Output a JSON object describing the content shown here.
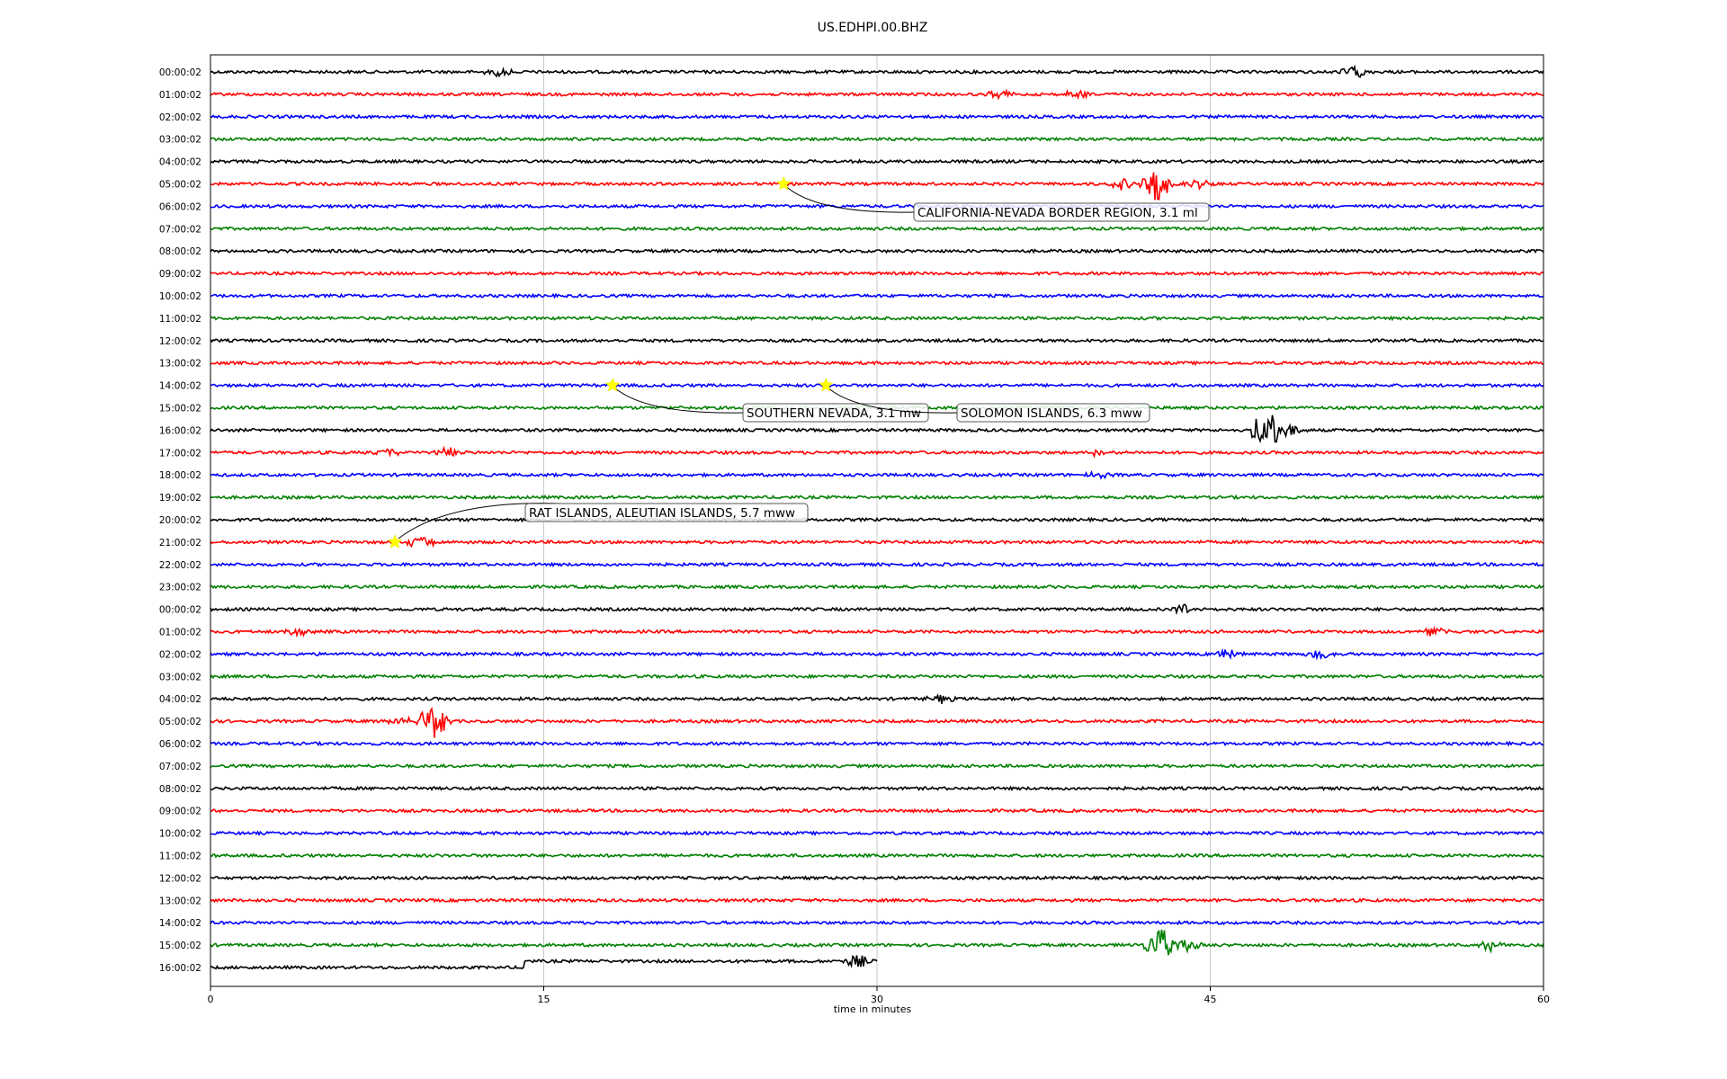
{
  "chart_data": {
    "type": "line",
    "title": "US.EDHPI.00.BHZ",
    "xlabel": "time in minutes",
    "ylabel": "",
    "xlim": [
      0,
      60
    ],
    "x_ticks": [
      "0",
      "15",
      "30",
      "45",
      "60"
    ],
    "grid": "vertical",
    "colors": [
      "#000000",
      "#ff0000",
      "#0000ff",
      "#008000"
    ],
    "rows": [
      "00:00:02",
      "01:00:02",
      "02:00:02",
      "03:00:02",
      "04:00:02",
      "05:00:02",
      "06:00:02",
      "07:00:02",
      "08:00:02",
      "09:00:02",
      "10:00:02",
      "11:00:02",
      "12:00:02",
      "13:00:02",
      "14:00:02",
      "15:00:02",
      "16:00:02",
      "17:00:02",
      "18:00:02",
      "19:00:02",
      "20:00:02",
      "21:00:02",
      "22:00:02",
      "23:00:02",
      "00:00:02",
      "01:00:02",
      "02:00:02",
      "03:00:02",
      "04:00:02",
      "05:00:02",
      "06:00:02",
      "07:00:02",
      "08:00:02",
      "09:00:02",
      "10:00:02",
      "11:00:02",
      "12:00:02",
      "13:00:02",
      "14:00:02",
      "15:00:02",
      "16:00:02"
    ],
    "last_row_end_minute": 30,
    "events": [
      {
        "row": 5,
        "minute": 25.8,
        "label": "CALIFORNIA-NEVADA BORDER REGION, 3.1 ml"
      },
      {
        "row": 14,
        "minute": 18.1,
        "label": "SOUTHERN NEVADA, 3.1 mw"
      },
      {
        "row": 14,
        "minute": 27.7,
        "label": "SOLOMON ISLANDS, 6.3 mww"
      },
      {
        "row": 21,
        "minute": 8.3,
        "label": "RAT ISLANDS, ALEUTIAN ISLANDS, 5.7 mww"
      }
    ],
    "bursts": [
      {
        "row": 0,
        "minute": 51.5,
        "amp": 7
      },
      {
        "row": 0,
        "minute": 13.0,
        "amp": 5
      },
      {
        "row": 1,
        "minute": 39.0,
        "amp": 6
      },
      {
        "row": 1,
        "minute": 35.5,
        "amp": 5
      },
      {
        "row": 5,
        "minute": 42.6,
        "amp": 22
      },
      {
        "row": 5,
        "minute": 41.0,
        "amp": 6
      },
      {
        "row": 5,
        "minute": 44.5,
        "amp": 6
      },
      {
        "row": 16,
        "minute": 47.5,
        "amp": 24
      },
      {
        "row": 16,
        "minute": 48.5,
        "amp": 8
      },
      {
        "row": 17,
        "minute": 8.0,
        "amp": 5
      },
      {
        "row": 17,
        "minute": 10.7,
        "amp": 5
      },
      {
        "row": 17,
        "minute": 40.0,
        "amp": 5
      },
      {
        "row": 18,
        "minute": 40.0,
        "amp": 4
      },
      {
        "row": 21,
        "minute": 9.5,
        "amp": 7
      },
      {
        "row": 24,
        "minute": 43.8,
        "amp": 6
      },
      {
        "row": 25,
        "minute": 4.0,
        "amp": 5
      },
      {
        "row": 25,
        "minute": 55.0,
        "amp": 5
      },
      {
        "row": 26,
        "minute": 45.8,
        "amp": 7
      },
      {
        "row": 26,
        "minute": 50.0,
        "amp": 5
      },
      {
        "row": 28,
        "minute": 32.8,
        "amp": 5
      },
      {
        "row": 29,
        "minute": 10.0,
        "amp": 22
      },
      {
        "row": 29,
        "minute": 8.5,
        "amp": 5
      },
      {
        "row": 39,
        "minute": 42.7,
        "amp": 22
      },
      {
        "row": 39,
        "minute": 44.0,
        "amp": 6
      },
      {
        "row": 39,
        "minute": 57.5,
        "amp": 7
      },
      {
        "row": 40,
        "minute": 29.1,
        "amp": 7
      }
    ]
  }
}
